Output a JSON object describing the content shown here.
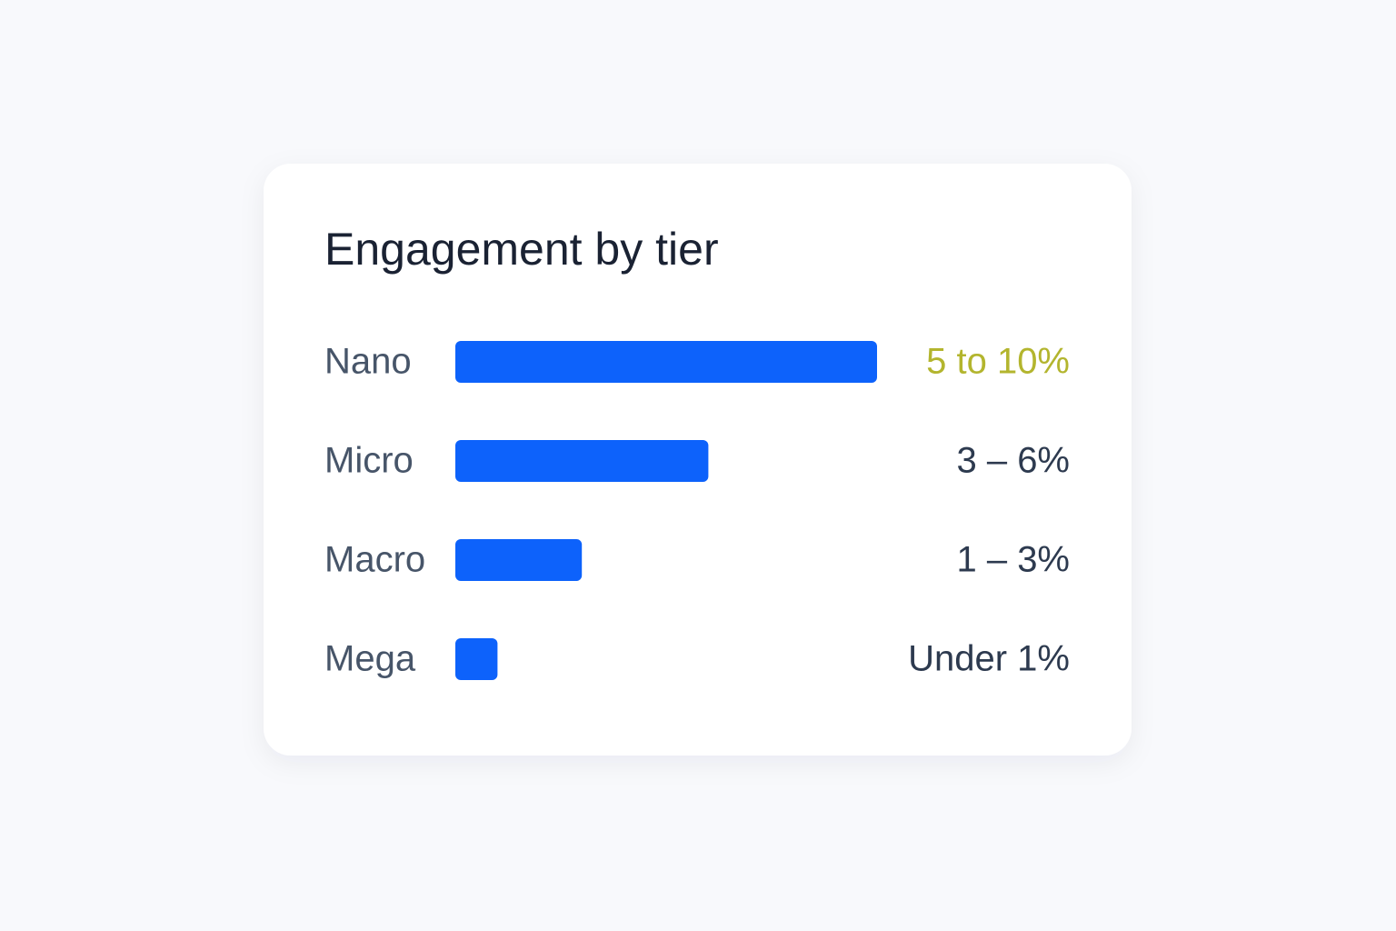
{
  "chart_data": {
    "type": "bar",
    "orientation": "horizontal",
    "title": "Engagement by tier",
    "categories": [
      "Nano",
      "Micro",
      "Macro",
      "Mega"
    ],
    "values": [
      10,
      6,
      3,
      1
    ],
    "value_labels": [
      "5 to 10%",
      "3 – 6%",
      "1 – 3%",
      "Under 1%"
    ],
    "value_label_colors": [
      "#b3b52e",
      "#2d3a4f",
      "#2d3a4f",
      "#2d3a4f"
    ],
    "color": "#0d62fb"
  }
}
